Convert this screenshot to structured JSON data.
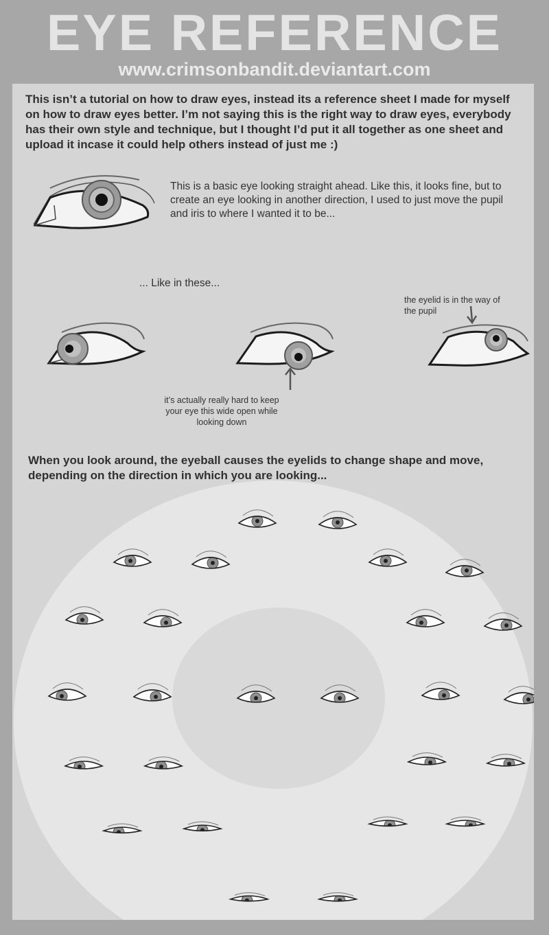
{
  "header": {
    "title": "EYE REFERENCE",
    "url": "www.crimsonbandit.deviantart.com"
  },
  "intro_text": "This isn’t a tutorial on how to draw eyes, instead its a reference sheet I made for myself on how to draw eyes better. I’m not saying this is the right way to draw eyes, everybody has their own style and technique, but I thought I’d put it all together as one sheet and upload it incase it could help others instead of just me :)",
  "basic_eye_text": "This is a basic eye looking straight ahead. Like this, it looks fine, but  to create an eye looking in another direction, I used to just move the pupil and iris to where I wanted it to be...",
  "like_in_these": "... Like in these...",
  "eyelid_note": "the eyelid is in the way of the pupil",
  "looking_down_note": "it’s actually really hard to keep your eye this wide open while looking down",
  "eyeball_text": "When you look around, the eyeball causes the eyelids to change shape and move, depending on the direction in which you are looking...",
  "colors": {
    "background": "#a7a7a7",
    "panel": "#d5d5d5",
    "outer_circle": "#e6e6e6",
    "inner_circle": "#d9d9d9",
    "title_text": "#e4e4e4",
    "ink": "#2b2b2b",
    "iris": "#8f8f8f"
  },
  "icons": [
    "basic-eye-drawing",
    "eye-looking-left-drawing",
    "eye-looking-down-drawing",
    "eye-looking-up-drawing",
    "arrow-up-icon",
    "arrow-down-icon",
    "eye-sketch"
  ]
}
